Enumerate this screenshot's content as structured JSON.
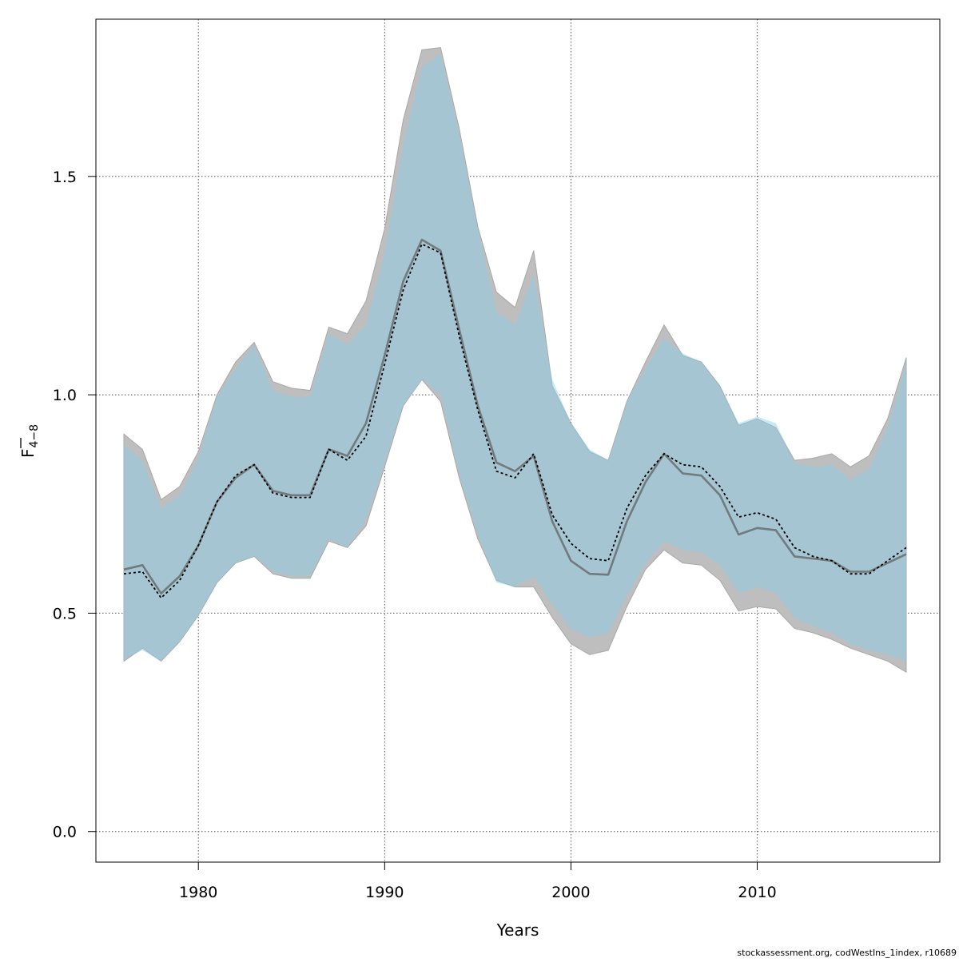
{
  "chart_data": {
    "type": "area",
    "xlabel": "Years",
    "ylabel_base": "F",
    "ylabel_sub": "4−8",
    "xlim": [
      1974.5,
      2019.8
    ],
    "ylim": [
      -0.07,
      1.86
    ],
    "x_ticks": [
      1980,
      1990,
      2000,
      2010
    ],
    "x_tick_labels": [
      "1980",
      "1990",
      "2000",
      "2010"
    ],
    "y_ticks": [
      0.0,
      0.5,
      1.0,
      1.5
    ],
    "y_tick_labels": [
      "0.0",
      "0.5",
      "1.0",
      "1.5"
    ],
    "grid": true,
    "years": [
      1976,
      1977,
      1978,
      1979,
      1980,
      1981,
      1982,
      1983,
      1984,
      1985,
      1986,
      1987,
      1988,
      1989,
      1990,
      1991,
      1992,
      1993,
      1994,
      1995,
      1996,
      1997,
      1998,
      1999,
      2000,
      2001,
      2002,
      2003,
      2004,
      2005,
      2006,
      2007,
      2008,
      2009,
      2010,
      2011,
      2012,
      2013,
      2014,
      2015,
      2016,
      2017,
      2018
    ],
    "series": [
      {
        "style": "grey band with solid line",
        "color": "#bebebe",
        "line_color": "#606060",
        "estimate": [
          0.6,
          0.61,
          0.545,
          0.585,
          0.655,
          0.755,
          0.81,
          0.84,
          0.78,
          0.77,
          0.77,
          0.875,
          0.86,
          0.935,
          1.09,
          1.26,
          1.355,
          1.33,
          1.15,
          0.975,
          0.845,
          0.825,
          0.86,
          0.71,
          0.62,
          0.59,
          0.588,
          0.71,
          0.8,
          0.865,
          0.82,
          0.815,
          0.77,
          0.68,
          0.695,
          0.69,
          0.63,
          0.625,
          0.62,
          0.595,
          0.595,
          0.615,
          0.635
        ],
        "lower": [
          0.39,
          0.42,
          0.39,
          0.435,
          0.495,
          0.57,
          0.615,
          0.63,
          0.59,
          0.58,
          0.58,
          0.665,
          0.65,
          0.7,
          0.835,
          0.975,
          1.035,
          0.985,
          0.81,
          0.67,
          0.575,
          0.56,
          0.56,
          0.49,
          0.43,
          0.405,
          0.415,
          0.515,
          0.6,
          0.645,
          0.615,
          0.61,
          0.575,
          0.505,
          0.515,
          0.51,
          0.465,
          0.455,
          0.44,
          0.42,
          0.405,
          0.39,
          0.365
        ],
        "upper": [
          0.91,
          0.875,
          0.76,
          0.79,
          0.87,
          1.0,
          1.075,
          1.12,
          1.03,
          1.015,
          1.01,
          1.155,
          1.14,
          1.215,
          1.38,
          1.63,
          1.79,
          1.795,
          1.61,
          1.385,
          1.235,
          1.2,
          1.33,
          1.02,
          0.935,
          0.87,
          0.85,
          0.985,
          1.075,
          1.16,
          1.09,
          1.075,
          1.02,
          0.93,
          0.945,
          0.925,
          0.85,
          0.855,
          0.865,
          0.835,
          0.86,
          0.945,
          1.085
        ]
      },
      {
        "style": "blue band with dotted line",
        "color": "#87ceeb",
        "line_color": "#000000",
        "estimate": [
          0.59,
          0.595,
          0.535,
          0.575,
          0.655,
          0.755,
          0.815,
          0.84,
          0.775,
          0.765,
          0.765,
          0.875,
          0.85,
          0.905,
          1.07,
          1.24,
          1.345,
          1.325,
          1.135,
          0.965,
          0.825,
          0.81,
          0.865,
          0.725,
          0.66,
          0.625,
          0.62,
          0.74,
          0.815,
          0.865,
          0.84,
          0.835,
          0.79,
          0.72,
          0.73,
          0.715,
          0.65,
          0.63,
          0.62,
          0.59,
          0.59,
          0.62,
          0.65
        ],
        "lower": [
          0.395,
          0.415,
          0.39,
          0.435,
          0.495,
          0.57,
          0.615,
          0.63,
          0.595,
          0.585,
          0.585,
          0.67,
          0.65,
          0.715,
          0.845,
          0.975,
          1.035,
          1.0,
          0.815,
          0.68,
          0.57,
          0.56,
          0.585,
          0.52,
          0.465,
          0.445,
          0.455,
          0.54,
          0.615,
          0.665,
          0.645,
          0.64,
          0.61,
          0.545,
          0.56,
          0.545,
          0.49,
          0.47,
          0.455,
          0.43,
          0.415,
          0.405,
          0.39
        ],
        "upper": [
          0.885,
          0.85,
          0.74,
          0.77,
          0.855,
          0.995,
          1.06,
          1.115,
          1.01,
          0.995,
          0.995,
          1.14,
          1.115,
          1.16,
          1.325,
          1.575,
          1.75,
          1.78,
          1.6,
          1.38,
          1.19,
          1.16,
          1.275,
          1.035,
          0.935,
          0.875,
          0.85,
          0.985,
          1.06,
          1.13,
          1.095,
          1.075,
          1.02,
          0.935,
          0.95,
          0.935,
          0.845,
          0.835,
          0.84,
          0.805,
          0.83,
          0.925,
          1.075
        ]
      }
    ]
  },
  "footer_text": "stockassessment.org, codWestIns_1index, r10689"
}
